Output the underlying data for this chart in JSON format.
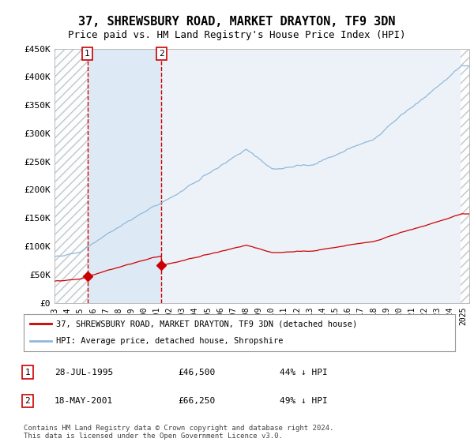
{
  "title": "37, SHREWSBURY ROAD, MARKET DRAYTON, TF9 3DN",
  "subtitle": "Price paid vs. HM Land Registry's House Price Index (HPI)",
  "ylim": [
    0,
    450000
  ],
  "yticks": [
    0,
    50000,
    100000,
    150000,
    200000,
    250000,
    300000,
    350000,
    400000,
    450000
  ],
  "ytick_labels": [
    "£0",
    "£50K",
    "£100K",
    "£150K",
    "£200K",
    "£250K",
    "£300K",
    "£350K",
    "£400K",
    "£450K"
  ],
  "xmin_year": 1993.0,
  "xmax_year": 2025.5,
  "xticks": [
    1993,
    1994,
    1995,
    1996,
    1997,
    1998,
    1999,
    2000,
    2001,
    2002,
    2003,
    2004,
    2005,
    2006,
    2007,
    2008,
    2009,
    2010,
    2011,
    2012,
    2013,
    2014,
    2015,
    2016,
    2017,
    2018,
    2019,
    2020,
    2021,
    2022,
    2023,
    2024,
    2025
  ],
  "hpi_color": "#91b8d9",
  "price_color": "#cc0000",
  "sale1_date": 1995.57,
  "sale1_price": 46500,
  "sale2_date": 2001.38,
  "sale2_price": 66250,
  "vline_color": "#cc0000",
  "shade_color": "#ddeaf5",
  "hatch_color": "#bbbbbb",
  "legend_label1": "37, SHREWSBURY ROAD, MARKET DRAYTON, TF9 3DN (detached house)",
  "legend_label2": "HPI: Average price, detached house, Shropshire",
  "annotation1_num": "1",
  "annotation1_date": "28-JUL-1995",
  "annotation1_price": "£46,500",
  "annotation1_hpi": "44% ↓ HPI",
  "annotation2_num": "2",
  "annotation2_date": "18-MAY-2001",
  "annotation2_price": "£66,250",
  "annotation2_hpi": "49% ↓ HPI",
  "footer": "Contains HM Land Registry data © Crown copyright and database right 2024.\nThis data is licensed under the Open Government Licence v3.0.",
  "title_fontsize": 11,
  "subtitle_fontsize": 9,
  "background_color": "#ffffff",
  "plot_bg_color": "#edf2f9"
}
